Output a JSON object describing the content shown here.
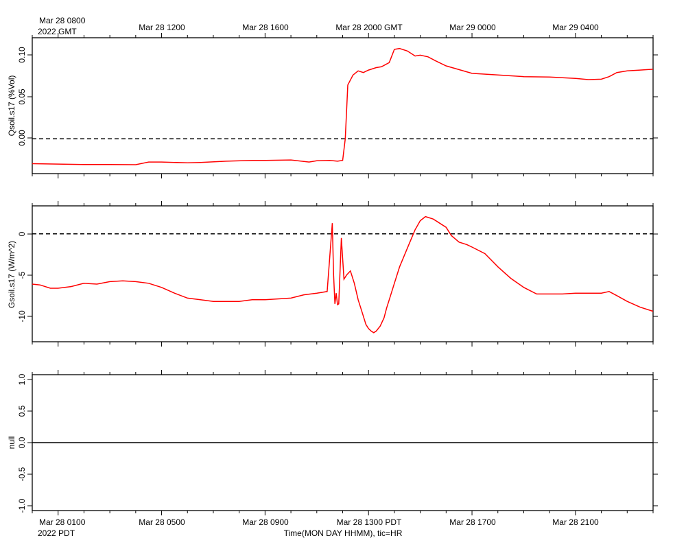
{
  "top_axis": {
    "first_label_line1": "Mar 28 0800",
    "first_label_line2": "2022 GMT",
    "labels": [
      "Mar 28 1200",
      "Mar 28 1600",
      "Mar 28 2000 GMT",
      "Mar 29 0000",
      "Mar 29 0400"
    ]
  },
  "bottom_axis": {
    "first_label_line1": "Mar 28 0100",
    "first_label_line2": "2022 PDT",
    "labels": [
      "Mar 28 0500",
      "Mar 28 0900",
      "Mar 28 1300 PDT",
      "Mar 28 1700",
      "Mar 28 2100"
    ],
    "title": "Time(MON DAY HHMM), tic=HR"
  },
  "colors": {
    "series": "#ff0000",
    "axis": "#000000",
    "reference": "#000000"
  },
  "chart_data": [
    {
      "type": "line",
      "ylabel": "Qsoil.s17 (%Vol)",
      "yticks": [
        "0.00",
        "0.05",
        "0.10"
      ],
      "ylim": [
        -0.042,
        0.122
      ],
      "xlim": [
        0.0,
        24.0
      ],
      "x_unit": "hours since Mar 28 0000 PDT",
      "reference_line": 0,
      "series": [
        {
          "x": [
            0.0,
            1.0,
            2.0,
            3.0,
            4.0,
            4.5,
            5.0,
            6.0,
            6.5,
            7.5,
            8.5,
            9.0,
            10.0,
            10.7,
            11.0,
            11.5,
            11.8,
            12.0,
            12.1,
            12.2,
            12.4,
            12.6,
            12.8,
            13.0,
            13.3,
            13.5,
            13.8,
            14.0,
            14.2,
            14.5,
            14.8,
            15.0,
            15.3,
            15.6,
            16.0,
            17.0,
            18.0,
            19.0,
            20.0,
            21.0,
            21.5,
            22.0,
            22.3,
            22.6,
            23.0,
            23.5,
            24.0
          ],
          "values": [
            -0.03,
            -0.0305,
            -0.031,
            -0.031,
            -0.0312,
            -0.028,
            -0.028,
            -0.029,
            -0.0285,
            -0.027,
            -0.026,
            -0.026,
            -0.0255,
            -0.028,
            -0.0265,
            -0.026,
            -0.027,
            -0.026,
            0.0,
            0.065,
            0.077,
            0.082,
            0.08,
            0.083,
            0.086,
            0.087,
            0.092,
            0.108,
            0.109,
            0.106,
            0.1,
            0.101,
            0.099,
            0.094,
            0.088,
            0.079,
            0.077,
            0.075,
            0.0745,
            0.073,
            0.0715,
            0.072,
            0.075,
            0.08,
            0.082,
            0.083,
            0.084
          ]
        }
      ]
    },
    {
      "type": "line",
      "ylabel": "Gsoil.s17 (W/m^2)",
      "yticks": [
        "-10",
        "-5",
        "0"
      ],
      "ylim": [
        -13.1,
        3.4
      ],
      "xlim": [
        0.0,
        24.0
      ],
      "x_unit": "hours since Mar 28 0000 PDT",
      "reference_line": 0,
      "series": [
        {
          "x": [
            0.0,
            0.3,
            0.7,
            1.0,
            1.5,
            2.0,
            2.5,
            3.0,
            3.5,
            4.0,
            4.5,
            5.0,
            5.5,
            6.0,
            6.5,
            7.0,
            7.5,
            8.0,
            8.5,
            9.0,
            10.0,
            10.5,
            11.0,
            11.4,
            11.6,
            11.65,
            11.7,
            11.75,
            11.8,
            11.85,
            11.95,
            12.05,
            12.15,
            12.3,
            12.45,
            12.6,
            12.75,
            12.9,
            13.0,
            13.1,
            13.2,
            13.3,
            13.45,
            13.6,
            13.7,
            13.8,
            14.0,
            14.2,
            14.4,
            14.6,
            14.8,
            15.0,
            15.2,
            15.5,
            16.0,
            16.2,
            16.5,
            16.8,
            17.0,
            17.5,
            18.0,
            18.5,
            19.0,
            19.5,
            20.0,
            20.5,
            21.0,
            21.5,
            22.0,
            22.3,
            22.6,
            23.0,
            23.5,
            24.0
          ],
          "values": [
            -6.1,
            -6.2,
            -6.6,
            -6.6,
            -6.4,
            -6.0,
            -6.1,
            -5.8,
            -5.7,
            -5.8,
            -6.0,
            -6.5,
            -7.2,
            -7.8,
            -8.0,
            -8.2,
            -8.2,
            -8.2,
            -8.0,
            -8.0,
            -7.8,
            -7.4,
            -7.2,
            -7.0,
            1.3,
            -5.0,
            -8.5,
            -7.2,
            -8.6,
            -8.5,
            -0.5,
            -5.5,
            -5.0,
            -4.5,
            -6.0,
            -8.0,
            -9.5,
            -11.0,
            -11.5,
            -11.8,
            -12.0,
            -11.8,
            -11.2,
            -10.2,
            -9.0,
            -8.0,
            -6.0,
            -4.0,
            -2.5,
            -1.0,
            0.5,
            1.6,
            2.1,
            1.8,
            0.8,
            -0.2,
            -1.0,
            -1.3,
            -1.6,
            -2.4,
            -4.0,
            -5.4,
            -6.5,
            -7.3,
            -7.3,
            -7.3,
            -7.2,
            -7.2,
            -7.2,
            -7.0,
            -7.5,
            -8.2,
            -8.9,
            -9.4
          ]
        }
      ]
    },
    {
      "type": "line",
      "ylabel": "null",
      "yticks": [
        "-1.0",
        "-0.5",
        "0.0",
        "0.5",
        "1.0"
      ],
      "ylim": [
        -1.05,
        1.05
      ],
      "xlim": [
        0.0,
        24.0
      ],
      "x_unit": "hours since Mar 28 0000 PDT",
      "reference_line": 0,
      "series": []
    }
  ]
}
